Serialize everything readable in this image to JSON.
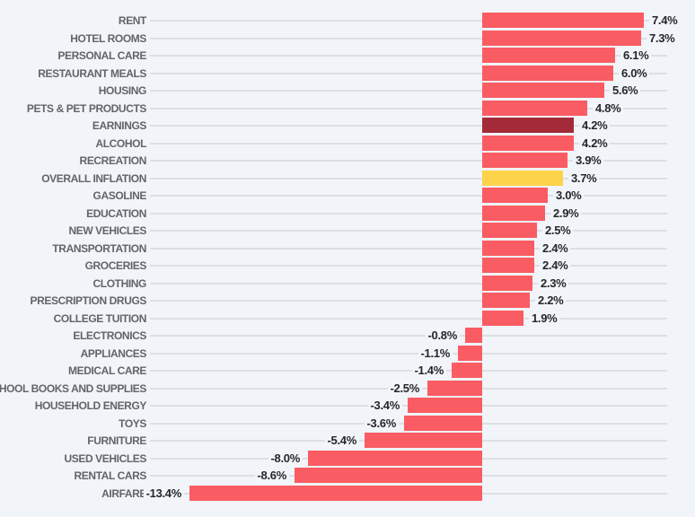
{
  "chart_data": {
    "type": "bar",
    "orientation": "horizontal",
    "title": "",
    "unit": "%",
    "legend": false,
    "grid": true,
    "xlim": [
      -13.4,
      7.4
    ],
    "categories": [
      "RENT",
      "HOTEL ROOMS",
      "PERSONAL CARE",
      "RESTAURANT MEALS",
      "HOUSING",
      "PETS & PET PRODUCTS",
      "EARNINGS",
      "ALCOHOL",
      "RECREATION",
      "OVERALL INFLATION",
      "GASOLINE",
      "EDUCATION",
      "NEW VEHICLES",
      "TRANSPORTATION",
      "GROCERIES",
      "CLOTHING",
      "PRESCRIPTION DRUGS",
      "COLLEGE TUITION",
      "ELECTRONICS",
      "APPLIANCES",
      "MEDICAL CARE",
      "SCHOOL BOOKS AND SUPPLIES",
      "HOUSEHOLD ENERGY",
      "TOYS",
      "FURNITURE",
      "USED VEHICLES",
      "RENTAL CARS",
      "AIRFARE"
    ],
    "values": [
      7.4,
      7.3,
      6.1,
      6.0,
      5.6,
      4.8,
      4.2,
      4.2,
      3.9,
      3.7,
      3.0,
      2.9,
      2.5,
      2.4,
      2.4,
      2.3,
      2.2,
      1.9,
      -0.8,
      -1.1,
      -1.4,
      -2.5,
      -3.4,
      -3.6,
      -5.4,
      -8.0,
      -8.6,
      -13.4
    ],
    "value_labels": [
      "7.4%",
      "7.3%",
      "6.1%",
      "6.0%",
      "5.6%",
      "4.8%",
      "4.2%",
      "4.2%",
      "3.9%",
      "3.7%",
      "3.0%",
      "2.9%",
      "2.5%",
      "2.4%",
      "2.4%",
      "2.3%",
      "2.2%",
      "1.9%",
      "-0.8%",
      "-1.1%",
      "-1.4%",
      "-2.5%",
      "-3.4%",
      "-3.6%",
      "-5.4%",
      "-8.0%",
      "-8.6%",
      "-13.4%"
    ],
    "highlighted_bars": [
      {
        "category": "EARNINGS",
        "index": 6,
        "color": "#a42a3a"
      },
      {
        "category": "OVERALL INFLATION",
        "index": 9,
        "color": "#fcd34b"
      }
    ],
    "colors": {
      "default_bar": "#fa5c63",
      "earnings_bar": "#a42a3a",
      "overall_inflation_bar": "#fcd34b",
      "background": "#f1f4f8",
      "gridline": "#dddfe3",
      "category_label": "#63646a",
      "value_label": "#26272a"
    }
  }
}
